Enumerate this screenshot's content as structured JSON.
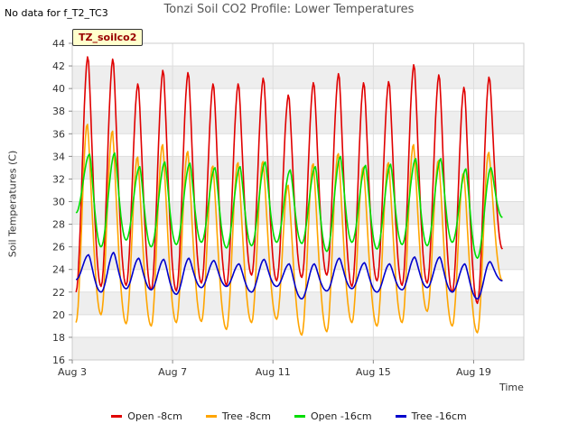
{
  "header": {
    "nodata_text": "No data for f_T2_TC3",
    "title": "Tonzi Soil CO2 Profile: Lower Temperatures",
    "badge": "TZ_soilco2"
  },
  "chart_data": {
    "type": "line",
    "title": "Tonzi Soil CO2 Profile: Lower Temperatures",
    "xlabel": "Time",
    "ylabel": "Soil Temperatures (C)",
    "ylim": [
      16,
      44
    ],
    "yticks": [
      16,
      18,
      20,
      22,
      24,
      26,
      28,
      30,
      32,
      34,
      36,
      38,
      40,
      42,
      44
    ],
    "xlim": [
      3,
      21
    ],
    "xticks": [
      3,
      7,
      11,
      15,
      19
    ],
    "xtick_labels": [
      "Aug 3",
      "Aug 7",
      "Aug 11",
      "Aug 15",
      "Aug 19"
    ],
    "grid": true,
    "legend_position": "bottom",
    "days": [
      3.15,
      4.15,
      5.15,
      6.15,
      7.15,
      8.15,
      9.15,
      10.15,
      11.15,
      12.15,
      13.15,
      14.15,
      15.15,
      16.15,
      17.15,
      18.15,
      19.15,
      20.15
    ],
    "series": [
      {
        "name": "Open -8cm",
        "color": "#e00000",
        "peak_day_offset": 0.6,
        "peaks": [
          42.9,
          42.7,
          40.5,
          41.7,
          41.5,
          40.5,
          40.5,
          41.0,
          39.5,
          40.6,
          41.4,
          40.6,
          40.7,
          42.2,
          41.3,
          40.2,
          41.1
        ],
        "troughs": [
          22.0,
          22.5,
          22.6,
          22.2,
          22.1,
          22.8,
          22.6,
          23.5,
          23.0,
          23.3,
          23.5,
          22.5,
          23.0,
          22.6,
          22.8,
          22.0,
          21.0,
          25.8
        ]
      },
      {
        "name": "Tree -8cm",
        "color": "#ffa500",
        "peak_day_offset": 0.55,
        "peaks": [
          36.9,
          36.3,
          34.0,
          35.1,
          34.5,
          33.2,
          33.5,
          33.6,
          31.5,
          33.4,
          34.3,
          33.1,
          33.5,
          35.1,
          33.7,
          32.6,
          34.4
        ],
        "troughs": [
          19.3,
          20.0,
          19.2,
          19.0,
          19.3,
          19.4,
          18.7,
          19.3,
          19.6,
          18.2,
          18.5,
          19.3,
          19.0,
          19.3,
          20.3,
          19.0,
          18.4,
          23.0
        ]
      },
      {
        "name": "Open -16cm",
        "color": "#00dd00",
        "peak_day_offset": 0.72,
        "peaks": [
          34.2,
          34.3,
          33.1,
          33.5,
          33.4,
          33.0,
          33.1,
          33.5,
          32.8,
          33.1,
          34.0,
          33.2,
          33.3,
          33.8,
          33.8,
          32.9,
          33.0
        ],
        "troughs": [
          29.0,
          26.0,
          26.6,
          26.0,
          26.2,
          26.4,
          25.9,
          26.1,
          26.4,
          26.3,
          25.6,
          26.4,
          25.8,
          26.2,
          26.1,
          26.4,
          25.0,
          28.6
        ]
      },
      {
        "name": "Tree -16cm",
        "color": "#0000cc",
        "peak_day_offset": 0.65,
        "peaks": [
          25.3,
          25.5,
          25.0,
          24.9,
          25.0,
          24.8,
          24.5,
          24.9,
          24.5,
          24.5,
          25.0,
          24.6,
          24.5,
          25.1,
          25.1,
          24.5,
          24.7
        ],
        "troughs": [
          23.1,
          22.0,
          22.3,
          22.2,
          21.8,
          22.4,
          22.5,
          22.0,
          22.5,
          21.4,
          22.1,
          22.3,
          22.0,
          22.2,
          22.4,
          22.0,
          21.4,
          23.0
        ]
      }
    ]
  }
}
